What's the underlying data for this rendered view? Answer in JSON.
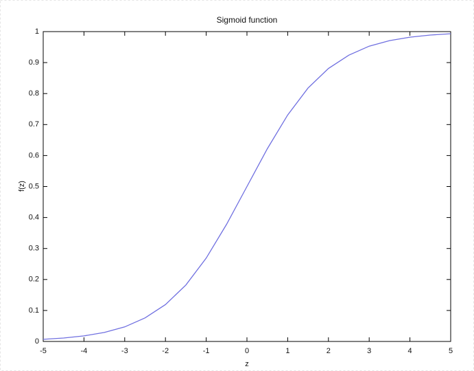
{
  "chart_data": {
    "type": "line",
    "title": "Sigmoid function",
    "x_label": "z",
    "y_label": "f(z)",
    "x": [
      -5,
      -4.5,
      -4,
      -3.5,
      -3,
      -2.5,
      -2,
      -1.5,
      -1,
      -0.5,
      0,
      0.5,
      1,
      1.5,
      2,
      2.5,
      3,
      3.5,
      4,
      4.5,
      5
    ],
    "series": [
      {
        "color": "#6f6fe0",
        "values": [
          0.007,
          0.011,
          0.018,
          0.029,
          0.047,
          0.076,
          0.119,
          0.182,
          0.269,
          0.378,
          0.5,
          0.622,
          0.731,
          0.818,
          0.881,
          0.924,
          0.953,
          0.971,
          0.982,
          0.989,
          0.993
        ]
      }
    ],
    "xlim": [
      -5,
      5
    ],
    "ylim": [
      0,
      1
    ],
    "xticks": [
      -5,
      -4,
      -3,
      -2,
      -1,
      0,
      1,
      2,
      3,
      4,
      5
    ],
    "yticks": [
      0,
      0.1,
      0.2,
      0.3,
      0.4,
      0.5,
      0.6,
      0.7,
      0.8,
      0.9,
      1
    ],
    "grid": false
  }
}
